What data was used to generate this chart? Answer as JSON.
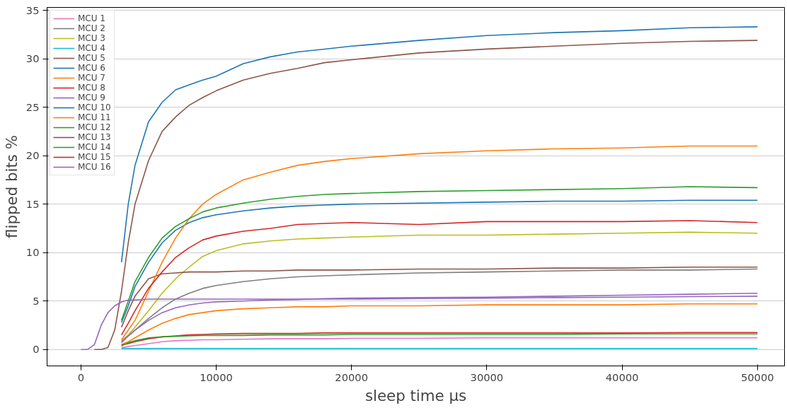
{
  "chart_data": {
    "type": "line",
    "xlabel": "sleep time µs",
    "ylabel": "flipped bits %",
    "x": [
      3000,
      3500,
      4000,
      5000,
      6000,
      7000,
      8000,
      9000,
      10000,
      12000,
      14000,
      16000,
      18000,
      20000,
      25000,
      30000,
      35000,
      40000,
      45000,
      50000
    ],
    "xlim": [
      -2500,
      52000
    ],
    "ylim": [
      -1.7,
      35.3
    ],
    "xticks": [
      0,
      10000,
      20000,
      30000,
      40000,
      50000
    ],
    "yticks": [
      0,
      5,
      10,
      15,
      20,
      25,
      30,
      35
    ],
    "grid": "y",
    "legend": "top left",
    "marker": "none",
    "line_style": "solid",
    "series": [
      {
        "name": "MCU 1",
        "color": "#e377c2",
        "values": [
          0.2,
          0.3,
          0.4,
          0.6,
          0.8,
          0.9,
          0.95,
          1,
          1,
          1.05,
          1.1,
          1.1,
          1.1,
          1.15,
          1.15,
          1.2,
          1.2,
          1.2,
          1.2,
          1.2
        ]
      },
      {
        "name": "MCU 2",
        "color": "#7f7f7f",
        "values": [
          0.7,
          1.4,
          2,
          3.2,
          4.3,
          5.2,
          5.8,
          6.3,
          6.6,
          7,
          7.3,
          7.5,
          7.6,
          7.7,
          7.9,
          8,
          8.1,
          8.2,
          8.2,
          8.3
        ]
      },
      {
        "name": "MCU 3",
        "color": "#bcbd22",
        "values": [
          0.9,
          1.5,
          2.3,
          4,
          5.8,
          7.3,
          8.5,
          9.6,
          10.2,
          10.9,
          11.2,
          11.4,
          11.5,
          11.6,
          11.8,
          11.8,
          11.9,
          12,
          12.1,
          12
        ]
      },
      {
        "name": "MCU 4",
        "color": "#17becf",
        "values": [
          0.1,
          0.1,
          0.1,
          0.1,
          0.1,
          0.1,
          0.1,
          0.1,
          0.1,
          0.1,
          0.1,
          0.1,
          0.1,
          0.1,
          0.1,
          0.1,
          0.1,
          0.1,
          0.1,
          0.1
        ]
      },
      {
        "name": "MCU 5",
        "color": "#8c564b",
        "values": [
          2.3,
          4,
          5.5,
          7.3,
          7.8,
          7.9,
          8,
          8,
          8,
          8.1,
          8.1,
          8.2,
          8.2,
          8.2,
          8.3,
          8.3,
          8.4,
          8.4,
          8.5,
          8.5
        ]
      },
      {
        "name": "MCU 6",
        "color": "#1f77b4",
        "values": [
          2.8,
          4.5,
          6.5,
          9,
          11,
          12.3,
          13.1,
          13.6,
          13.9,
          14.3,
          14.6,
          14.8,
          14.9,
          15,
          15.1,
          15.2,
          15.3,
          15.3,
          15.4,
          15.4
        ]
      },
      {
        "name": "MCU 7",
        "color": "#ff7f0e",
        "values": [
          0.5,
          0.8,
          1.2,
          2,
          2.7,
          3.2,
          3.6,
          3.8,
          4,
          4.2,
          4.3,
          4.4,
          4.4,
          4.5,
          4.5,
          4.6,
          4.6,
          4.6,
          4.7,
          4.7
        ]
      },
      {
        "name": "MCU 8",
        "color": "#d62728",
        "values": [
          0.45,
          0.6,
          0.8,
          1.1,
          1.3,
          1.4,
          1.5,
          1.55,
          1.6,
          1.65,
          1.65,
          1.65,
          1.7,
          1.7,
          1.7,
          1.7,
          1.7,
          1.7,
          1.75,
          1.75
        ]
      },
      {
        "name": "MCU 9",
        "color": "#9467bd",
        "values": [
          0.8,
          1.4,
          2,
          3,
          3.8,
          4.3,
          4.6,
          4.8,
          4.9,
          5,
          5.1,
          5.15,
          5.25,
          5.3,
          5.35,
          5.4,
          5.5,
          5.6,
          5.7,
          5.8
        ]
      },
      {
        "name": "MCU 10",
        "color": "#1f77b4",
        "values": [
          9,
          15,
          19,
          23.5,
          25.5,
          26.8,
          27.3,
          27.8,
          28.2,
          29.5,
          30.2,
          30.7,
          31,
          31.3,
          31.9,
          32.4,
          32.7,
          32.9,
          33.2,
          33.3
        ]
      },
      {
        "name": "MCU 11",
        "color": "#ff7f0e",
        "values": [
          1,
          2,
          3,
          6,
          9,
          11.5,
          13.5,
          15,
          16,
          17.5,
          18.3,
          19,
          19.4,
          19.7,
          20.2,
          20.5,
          20.7,
          20.8,
          21,
          21
        ]
      },
      {
        "name": "MCU 12",
        "color": "#2ca02c",
        "values": [
          0.35,
          0.7,
          0.9,
          1.2,
          1.3,
          1.35,
          1.4,
          1.45,
          1.45,
          1.45,
          1.5,
          1.5,
          1.5,
          1.55,
          1.55,
          1.55,
          1.55,
          1.6,
          1.6,
          1.6
        ]
      },
      {
        "name": "MCU 13",
        "color": "#8c564b",
        "x": [
          1000,
          1500,
          2000,
          2500,
          3000,
          3500,
          4000,
          5000,
          6000,
          7000,
          8000,
          9000,
          10000,
          12000,
          14000,
          16000,
          18000,
          20000,
          25000,
          30000,
          35000,
          40000,
          45000,
          50000
        ],
        "values": [
          0,
          0,
          0.2,
          2,
          6,
          11,
          15,
          19.5,
          22.5,
          24,
          25.2,
          26,
          26.7,
          27.8,
          28.5,
          29,
          29.6,
          29.9,
          30.6,
          31,
          31.3,
          31.6,
          31.8,
          31.9
        ]
      },
      {
        "name": "MCU 14",
        "color": "#2ca02c",
        "values": [
          3,
          5,
          7,
          9.5,
          11.5,
          12.7,
          13.5,
          14.2,
          14.6,
          15.1,
          15.5,
          15.8,
          16,
          16.1,
          16.3,
          16.4,
          16.5,
          16.6,
          16.8,
          16.7
        ]
      },
      {
        "name": "MCU 15",
        "color": "#d62728",
        "values": [
          1.5,
          2.7,
          4,
          6.3,
          8,
          9.5,
          10.5,
          11.3,
          11.7,
          12.2,
          12.5,
          12.9,
          13,
          13.1,
          12.9,
          13.2,
          13.2,
          13.2,
          13.3,
          13.1
        ]
      },
      {
        "name": "MCU 16",
        "color": "#9467bd",
        "x": [
          0,
          500,
          1000,
          1500,
          2000,
          2500,
          3000,
          3500,
          4000,
          5000,
          6000,
          7000,
          8000,
          9000,
          10000,
          12000,
          14000,
          16000,
          18000,
          20000,
          25000,
          30000,
          35000,
          40000,
          45000,
          50000
        ],
        "values": [
          0,
          0,
          0.5,
          2.5,
          3.8,
          4.5,
          4.9,
          5.1,
          5.1,
          5.2,
          5.2,
          5.2,
          5.2,
          5.2,
          5.2,
          5.2,
          5.2,
          5.2,
          5.2,
          5.2,
          5.25,
          5.3,
          5.35,
          5.4,
          5.45,
          5.5
        ]
      }
    ]
  }
}
